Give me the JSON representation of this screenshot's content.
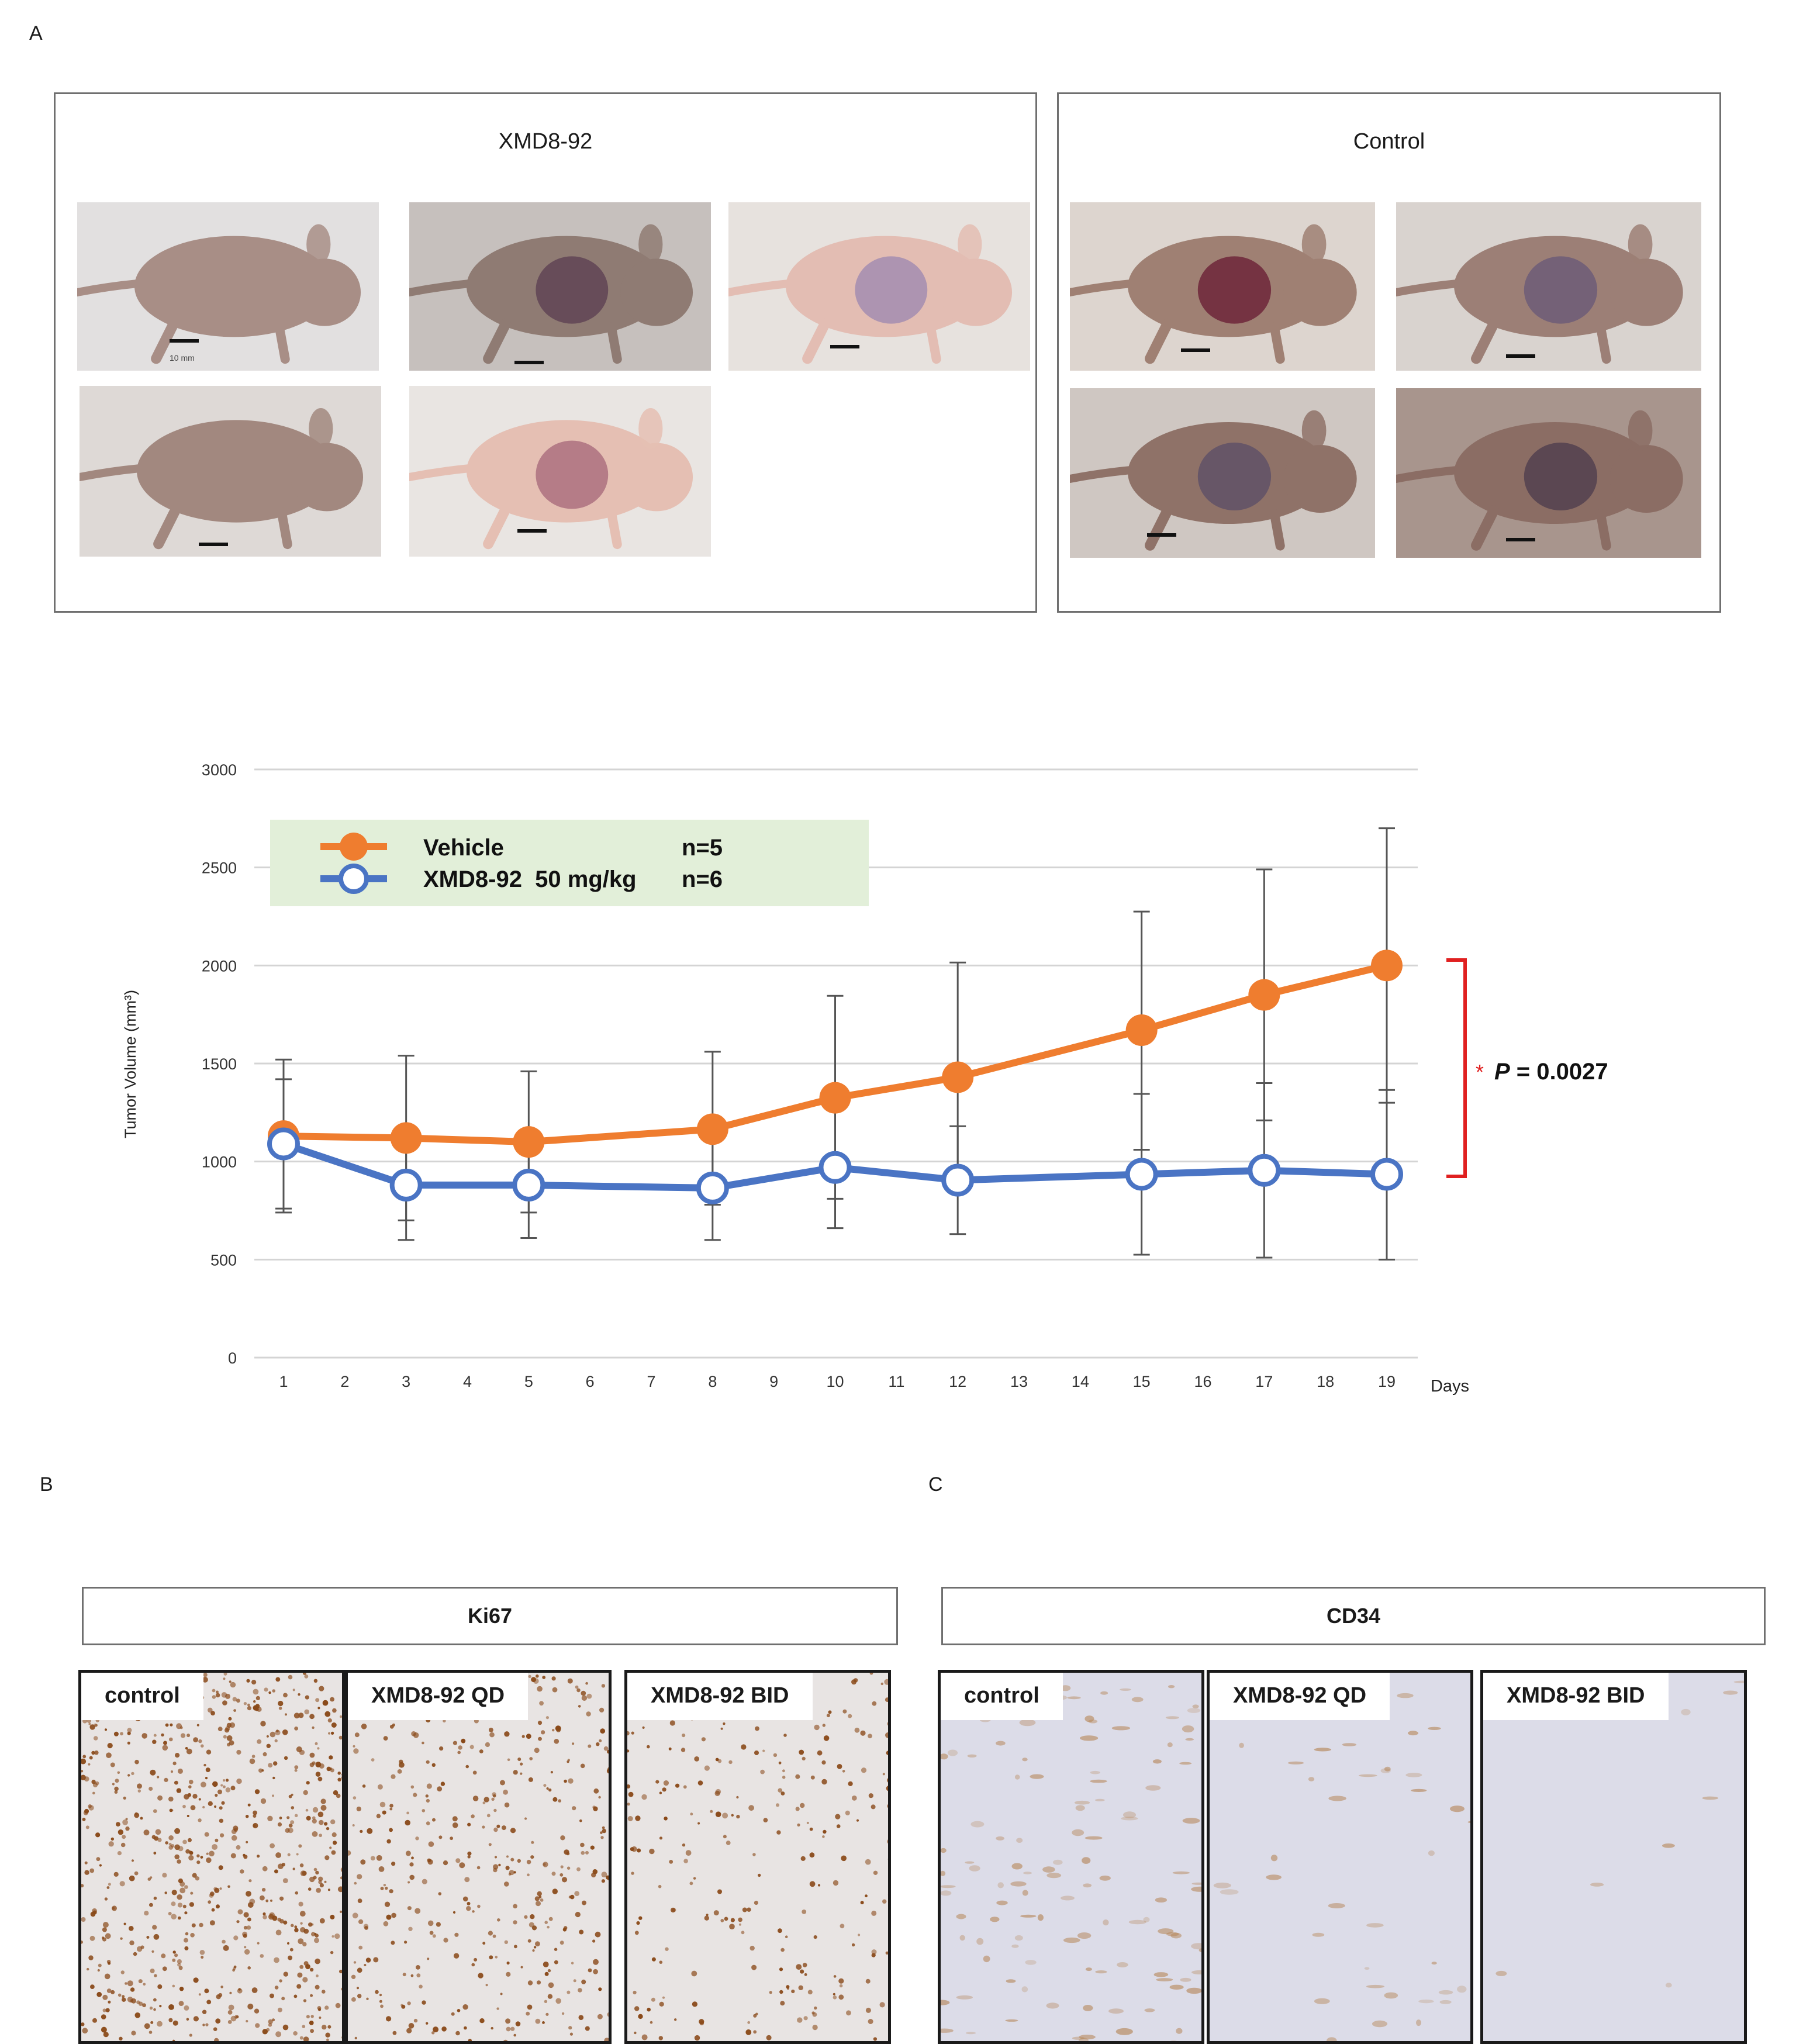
{
  "figure": {
    "panel_a_letter": "A",
    "panel_b_letter": "B",
    "panel_c_letter": "C"
  },
  "panel_a": {
    "xmd_group_title": "XMD8-92",
    "control_group_title": "Control",
    "scale_text": "10 mm",
    "xmd_photos": [
      "mouse-xmd-1",
      "mouse-xmd-2",
      "mouse-xmd-3",
      "mouse-xmd-4",
      "mouse-xmd-5"
    ],
    "control_photos": [
      "mouse-control-1",
      "mouse-control-2",
      "mouse-control-3",
      "mouse-control-4"
    ]
  },
  "chart_data": {
    "type": "line",
    "title": "",
    "xlabel": "Days",
    "ylabel": "Tumor Volume (mm³)",
    "x_ticks": [
      "1",
      "2",
      "3",
      "4",
      "5",
      "6",
      "7",
      "8",
      "9",
      "10",
      "11",
      "12",
      "13",
      "14",
      "15",
      "16",
      "17",
      "18",
      "19"
    ],
    "y_ticks": [
      "0",
      "500",
      "1000",
      "1500",
      "2000",
      "2500",
      "3000"
    ],
    "ylim": [
      0,
      3000
    ],
    "xlim": [
      1,
      19
    ],
    "grid": "horizontal",
    "legend_position": "top-left",
    "series": [
      {
        "name": "Vehicle",
        "n_label": "n=5",
        "color": "#ef7d2f",
        "marker": "filled-circle",
        "x": [
          1,
          3,
          5,
          8,
          10,
          12,
          15,
          17,
          19
        ],
        "y": [
          1130,
          1120,
          1100,
          1165,
          1325,
          1430,
          1670,
          1850,
          2000
        ],
        "err_low": [
          740,
          700,
          740,
          780,
          810,
          840,
          1060,
          1210,
          1300
        ],
        "err_high": [
          1520,
          1540,
          1460,
          1560,
          1845,
          2015,
          2275,
          2490,
          2700
        ]
      },
      {
        "name": "XMD8-92  50 mg/kg",
        "n_label": "n=6",
        "color": "#4a74c4",
        "marker": "open-circle",
        "x": [
          1,
          3,
          5,
          8,
          10,
          12,
          15,
          17,
          19
        ],
        "y": [
          1090,
          880,
          880,
          865,
          970,
          905,
          935,
          955,
          935
        ],
        "err_low": [
          760,
          600,
          610,
          600,
          660,
          630,
          525,
          510,
          500
        ],
        "err_high": [
          1420,
          1160,
          1150,
          1130,
          1280,
          1180,
          1345,
          1400,
          1365
        ]
      }
    ],
    "annotation": {
      "star": "*",
      "p_label": "P",
      "p_value": " = 0.0027",
      "bracket_color": "#e02020"
    }
  },
  "panel_b": {
    "header": "Ki67",
    "tiles": [
      "control",
      "XMD8-92 QD",
      "XMD8-92 BID"
    ],
    "stain_color": "#8a4a1a",
    "background_color": "#e8e4e3"
  },
  "panel_c": {
    "header": "CD34",
    "tiles": [
      "control",
      "XMD8-92 QD",
      "XMD8-92 BID"
    ],
    "stain_color": "#b6875a",
    "background_color": "#dcdce8"
  }
}
